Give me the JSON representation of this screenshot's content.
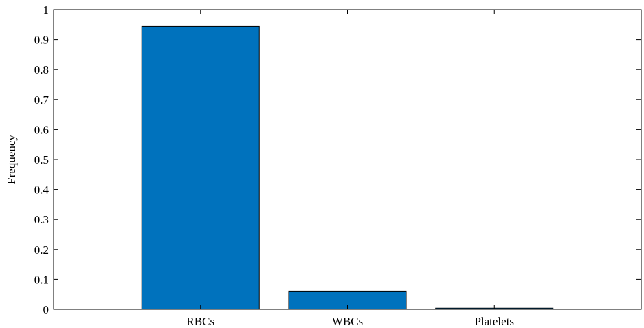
{
  "chart_data": {
    "type": "bar",
    "title": "",
    "xlabel": "",
    "ylabel": "Frequency",
    "categories": [
      "RBCs",
      "WBCs",
      "Platelets"
    ],
    "values": [
      0.944,
      0.061,
      0.004
    ],
    "ylim": [
      0,
      1
    ],
    "yticks": [
      "0",
      "0.1",
      "0.2",
      "0.3",
      "0.4",
      "0.5",
      "0.6",
      "0.7",
      "0.8",
      "0.9",
      "1"
    ],
    "grid": false,
    "legend": "none",
    "bar_color": "#0072BD",
    "bar_edge_color": "#000000"
  }
}
